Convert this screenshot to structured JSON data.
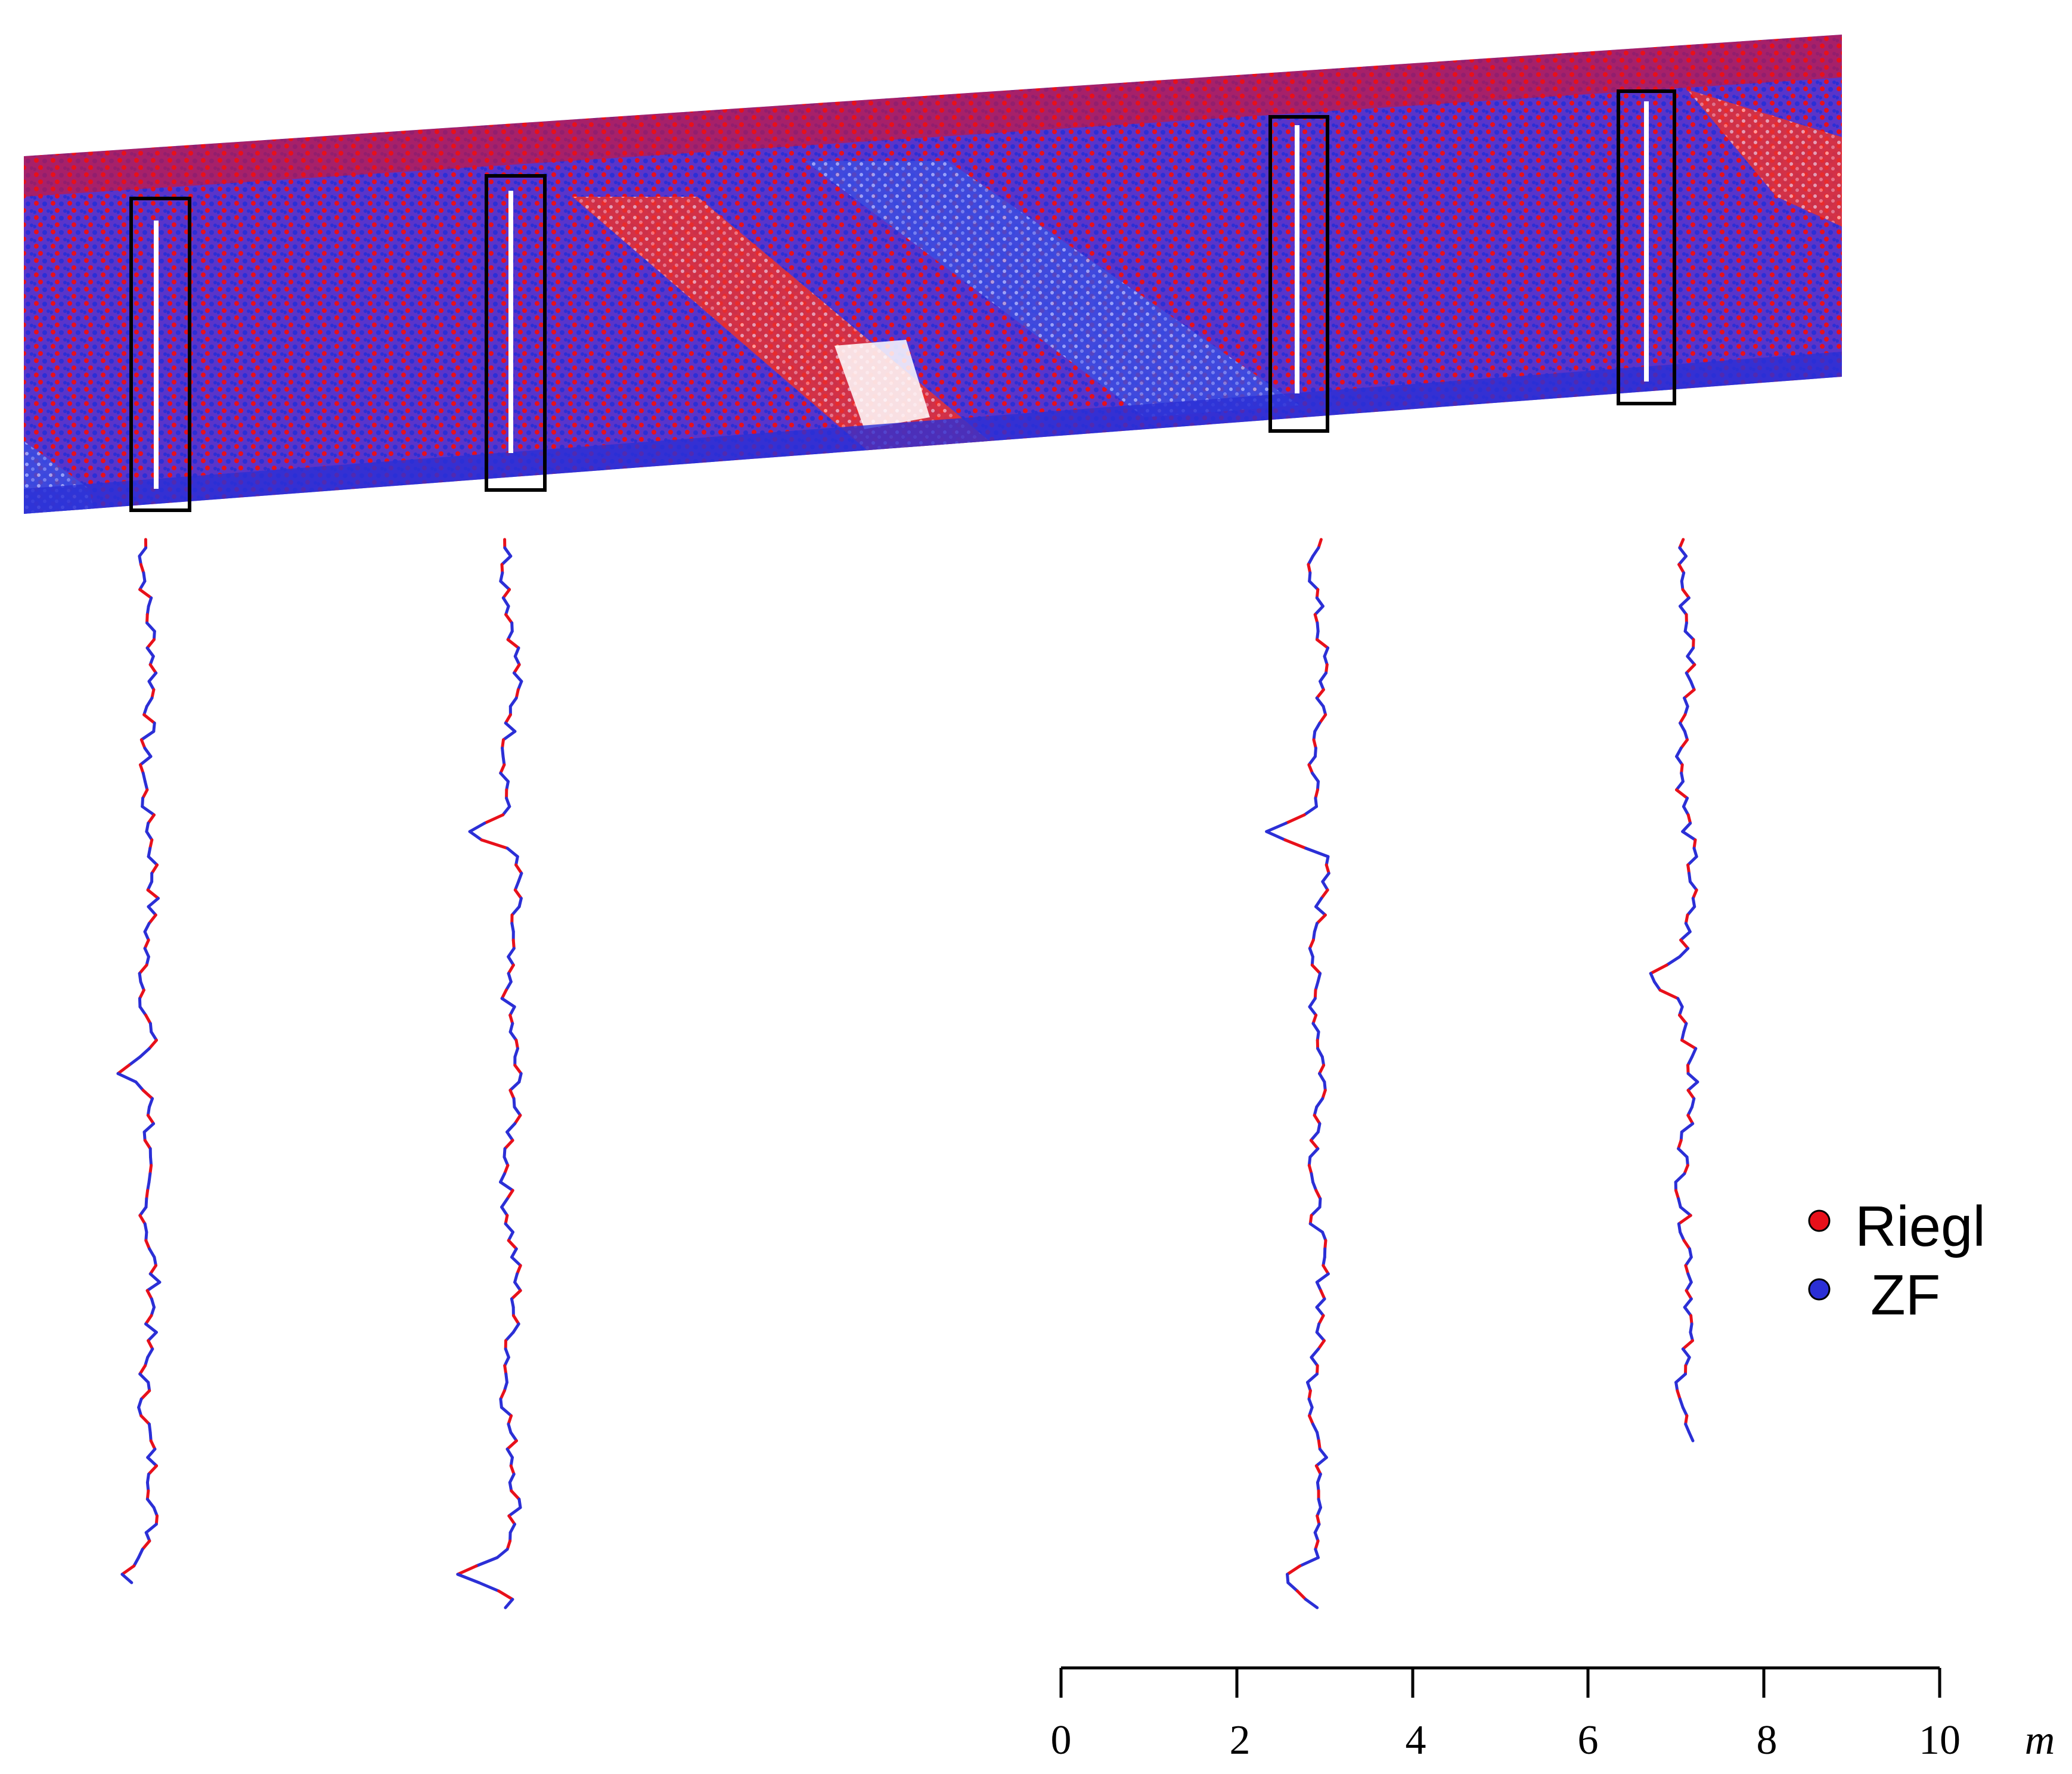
{
  "legend": {
    "items": [
      {
        "label": "Riegl",
        "color": "#e8101a"
      },
      {
        "label": "ZF",
        "color": "#2b2fd6"
      }
    ]
  },
  "scale_bar": {
    "ticks": [
      "0",
      "2",
      "4",
      "6",
      "8",
      "10"
    ],
    "unit": "m"
  },
  "colors": {
    "riegl": "#e8101a",
    "zf": "#2b2fd6",
    "box": "#000000"
  }
}
